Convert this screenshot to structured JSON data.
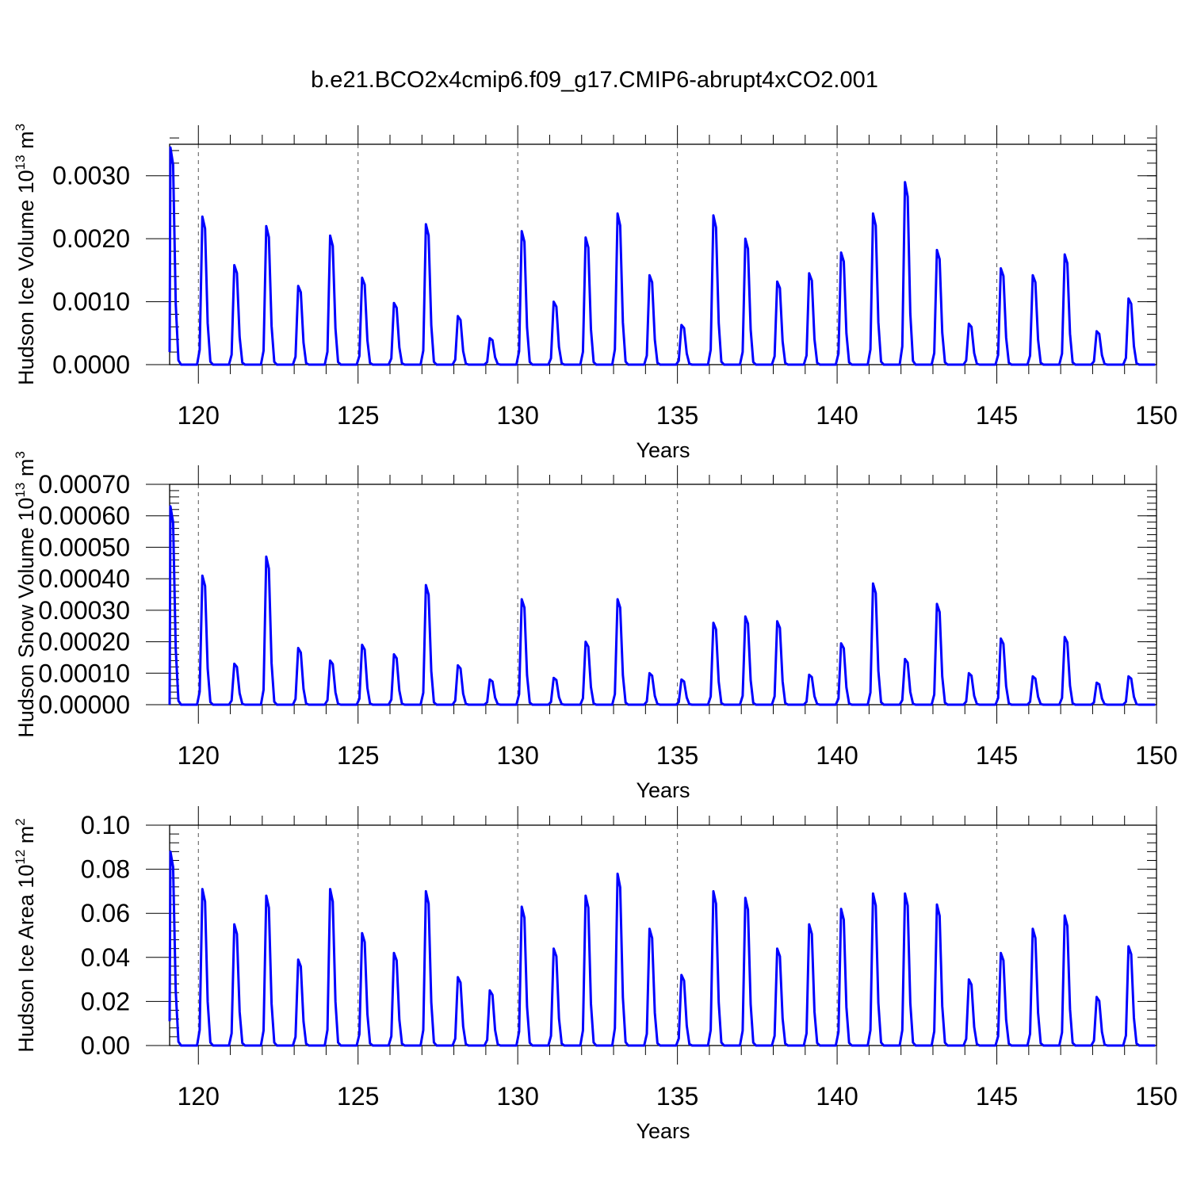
{
  "title": "b.e21.BCO2x4cmip6.f09_g17.CMIP6-abrupt4xCO2.001",
  "line_color": "#0000ff",
  "chart_data": [
    {
      "type": "line",
      "name": "ice-volume",
      "ylabel": "Hudson Ice Volume 10",
      "ylabel_sup": "13",
      "ylabel_unit": "m",
      "ylabel_unit_sup": "3",
      "xlabel": "Years",
      "xlim": [
        119.1,
        150
      ],
      "ylim": [
        0,
        0.0035
      ],
      "xticks": [
        120,
        125,
        130,
        135,
        140,
        145,
        150
      ],
      "xtick_labels": [
        "120",
        "125",
        "130",
        "135",
        "140",
        "145",
        "150"
      ],
      "yticks": [
        0,
        0.001,
        0.002,
        0.003
      ],
      "ytick_labels": [
        "0.0000",
        "0.0010",
        "0.0020",
        "0.0030"
      ],
      "ytick_minor": 0.0002,
      "grid_x": true,
      "start_year": 119.0,
      "start_value": 0.0002,
      "peaks": [
        0.00345,
        0.00235,
        0.00158,
        0.0022,
        0.00125,
        0.00205,
        0.00138,
        0.00098,
        0.00223,
        0.00077,
        0.00042,
        0.00212,
        0.001,
        0.00202,
        0.0024,
        0.00142,
        0.00063,
        0.00237,
        0.002,
        0.00132,
        0.00145,
        0.00178,
        0.0024,
        0.0029,
        0.00182,
        0.00065,
        0.00153,
        0.00142,
        0.00175,
        0.00053,
        0.00105
      ]
    },
    {
      "type": "line",
      "name": "snow-volume",
      "ylabel": "Hudson Snow Volume 10",
      "ylabel_sup": "13",
      "ylabel_unit": "m",
      "ylabel_unit_sup": "3",
      "xlabel": "Years",
      "xlim": [
        119.1,
        150
      ],
      "ylim": [
        0,
        0.0007
      ],
      "xticks": [
        120,
        125,
        130,
        135,
        140,
        145,
        150
      ],
      "xtick_labels": [
        "120",
        "125",
        "130",
        "135",
        "140",
        "145",
        "150"
      ],
      "yticks": [
        0,
        0.0001,
        0.0002,
        0.0003,
        0.0004,
        0.0005,
        0.0006,
        0.0007
      ],
      "ytick_labels": [
        "0.00000",
        "0.00010",
        "0.00020",
        "0.00030",
        "0.00040",
        "0.00050",
        "0.00060",
        "0.00070"
      ],
      "ytick_minor": 2e-05,
      "grid_x": true,
      "start_year": 119.0,
      "start_value": 0.0,
      "peaks": [
        0.00063,
        0.00041,
        0.00013,
        0.00047,
        0.00018,
        0.00014,
        0.00019,
        0.00016,
        0.00038,
        0.000125,
        8e-05,
        0.000335,
        8.5e-05,
        0.0002,
        0.000335,
        0.0001,
        8e-05,
        0.00026,
        0.00028,
        0.000265,
        9.5e-05,
        0.000195,
        0.000385,
        0.000145,
        0.00032,
        0.0001,
        0.00021,
        9e-05,
        0.000215,
        7e-05,
        9e-05
      ]
    },
    {
      "type": "line",
      "name": "ice-area",
      "ylabel": "Hudson Ice Area 10",
      "ylabel_sup": "12",
      "ylabel_unit": "m",
      "ylabel_unit_sup": "2",
      "xlabel": "Years",
      "xlim": [
        119.1,
        150
      ],
      "ylim": [
        0,
        0.1
      ],
      "xticks": [
        120,
        125,
        130,
        135,
        140,
        145,
        150
      ],
      "xtick_labels": [
        "120",
        "125",
        "130",
        "135",
        "140",
        "145",
        "150"
      ],
      "yticks": [
        0,
        0.02,
        0.04,
        0.06,
        0.08,
        0.1
      ],
      "ytick_labels": [
        "0.00",
        "0.02",
        "0.04",
        "0.06",
        "0.08",
        "0.10"
      ],
      "ytick_minor": 0.004,
      "grid_x": true,
      "start_year": 119.0,
      "start_value": 0.011,
      "peaks": [
        0.088,
        0.071,
        0.055,
        0.068,
        0.039,
        0.071,
        0.051,
        0.042,
        0.07,
        0.031,
        0.025,
        0.063,
        0.044,
        0.068,
        0.078,
        0.053,
        0.032,
        0.07,
        0.067,
        0.044,
        0.055,
        0.062,
        0.069,
        0.069,
        0.064,
        0.03,
        0.042,
        0.053,
        0.059,
        0.022,
        0.045
      ]
    }
  ]
}
